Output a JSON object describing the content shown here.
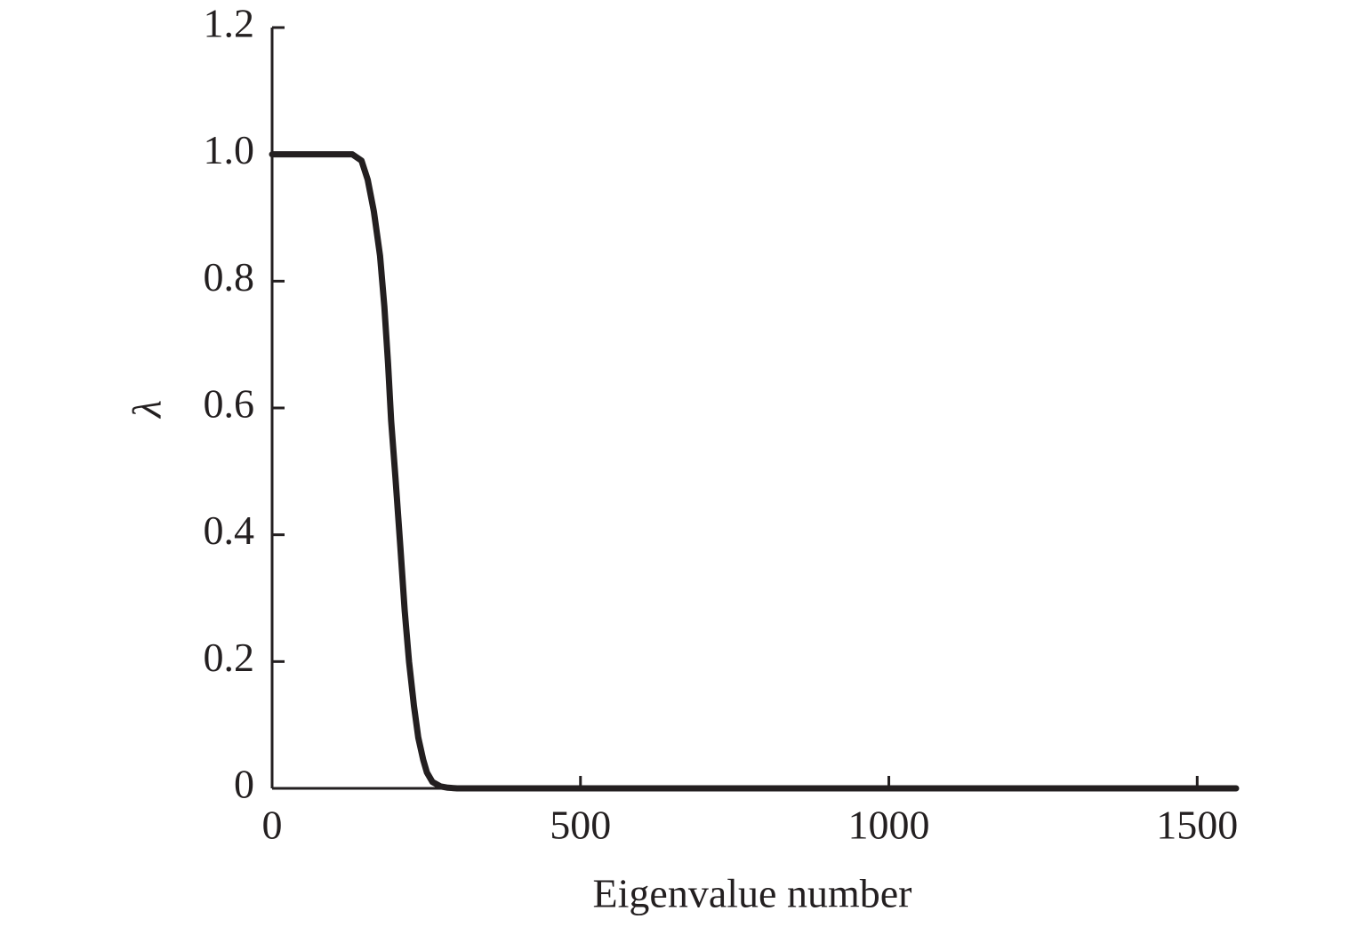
{
  "chart_data": {
    "type": "line",
    "x_label": "Eigenvalue number",
    "y_label": "λ",
    "x": [
      0,
      50,
      100,
      130,
      145,
      155,
      165,
      175,
      182,
      188,
      193,
      200,
      208,
      215,
      222,
      230,
      237,
      245,
      251,
      260,
      273,
      285,
      300,
      500,
      1000,
      1500,
      1563
    ],
    "series": [
      {
        "name": "λ",
        "color": "#231f20",
        "values": [
          1,
          1,
          1,
          1,
          0.99,
          0.96,
          0.91,
          0.84,
          0.76,
          0.67,
          0.58,
          0.49,
          0.38,
          0.28,
          0.2,
          0.13,
          0.08,
          0.045,
          0.025,
          0.01,
          0.003,
          0.001,
          0,
          0,
          0,
          0,
          0
        ]
      }
    ],
    "xlim": [
      0,
      1563
    ],
    "ylim": [
      0,
      1.2
    ],
    "xticks": [
      0,
      500,
      1000,
      1500
    ],
    "yticks": [
      0,
      0.2,
      0.4,
      0.6,
      0.8,
      {
        "value": 1,
        "label": "1.0"
      },
      1.2
    ]
  }
}
